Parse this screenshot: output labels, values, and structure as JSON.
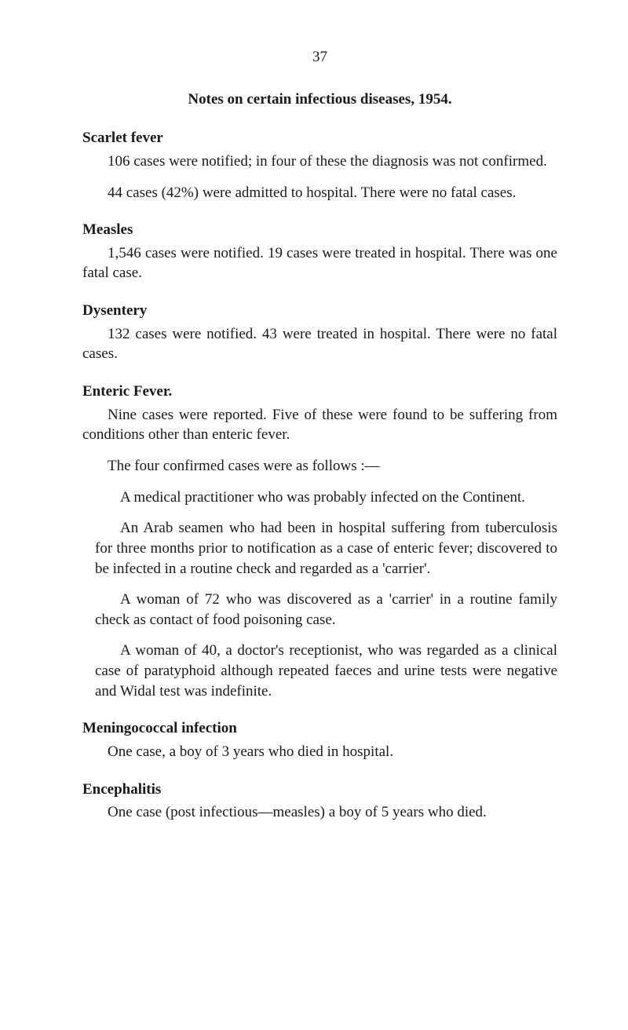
{
  "page_number": "37",
  "title": "Notes on certain infectious diseases, 1954.",
  "sections": {
    "scarlet_fever": {
      "heading": "Scarlet fever",
      "para1": "106 cases were notified; in four of these the diagnosis was not confirmed.",
      "para2": "44 cases (42%) were admitted to hospital. There were no fatal cases."
    },
    "measles": {
      "heading": "Measles",
      "para1": "1,546 cases were notified. 19 cases were treated in hospital. There was one fatal case."
    },
    "dysentery": {
      "heading": "Dysentery",
      "para1": "132 cases were notified. 43 were treated in hospital. There were no fatal cases."
    },
    "enteric_fever": {
      "heading": "Enteric Fever.",
      "para1": "Nine cases were reported. Five of these were found to be suffering from conditions other than enteric fever.",
      "para2": "The four confirmed cases were as follows :—",
      "case1": "A medical practitioner who was probably infected on the Continent.",
      "case2": "An Arab seamen who had been in hospital suffering from tuberculosis for three months prior to notification as a case of enteric fever; discovered to be infected in a routine check and regarded as a 'carrier'.",
      "case3": "A woman of 72 who was discovered as a 'carrier' in a routine family check as contact of food poisoning case.",
      "case4": "A woman of 40, a doctor's receptionist, who was regarded as a clinical case of paratyphoid although repeated faeces and urine tests were negative and Widal test was indefinite."
    },
    "meningococcal": {
      "heading": "Meningococcal infection",
      "para1": "One case, a boy of 3 years who died in hospital."
    },
    "encephalitis": {
      "heading": "Encephalitis",
      "para1": "One case (post infectious—measles) a boy of 5 years who died."
    }
  }
}
